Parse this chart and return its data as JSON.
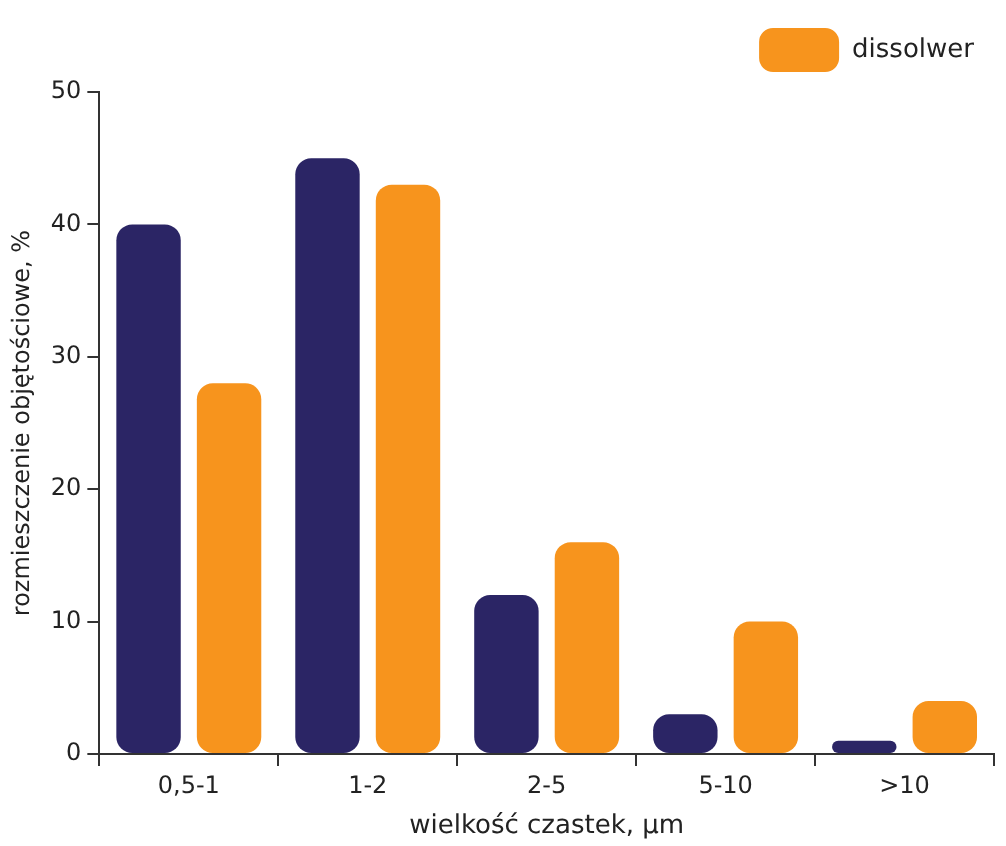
{
  "chart_data": {
    "type": "bar",
    "xlabel": "wielkość czastek, µm",
    "ylabel": "rozmieszczenie objętościowe, %",
    "categories": [
      "0,5-1",
      "1-2",
      "2-5",
      "5-10",
      ">10"
    ],
    "series": [
      {
        "color": "#2b2565",
        "values": [
          40,
          45,
          12,
          3,
          1
        ]
      },
      {
        "name": "dissolwer",
        "color": "#f7941d",
        "values": [
          28,
          43,
          16,
          10,
          4
        ]
      }
    ],
    "ylim": [
      0,
      50
    ],
    "yticks": [
      0,
      10,
      20,
      30,
      40,
      50
    ],
    "grid": false,
    "legend": "top right"
  }
}
